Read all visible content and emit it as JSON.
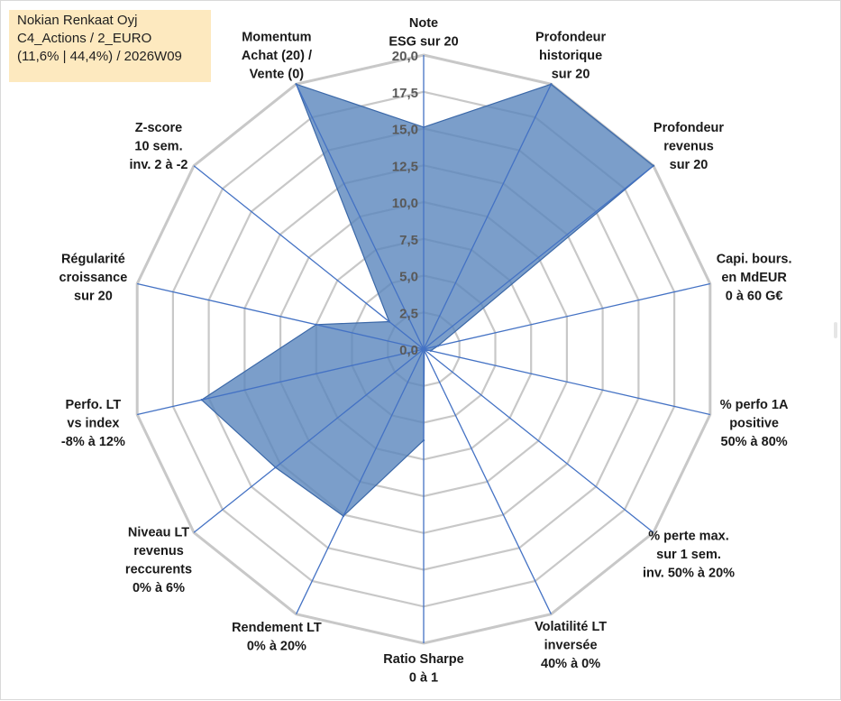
{
  "info_box": {
    "line1": "Nokian Renkaat Oyj",
    "line2": "C4_Actions / 2_EURO",
    "line3": "(11,6% | 44,4%) / 2026W09"
  },
  "colors": {
    "fill": "#5a86bd",
    "stroke": "#3b68a8",
    "grid": "#c8c8c8",
    "spoke": "#4472c4"
  },
  "chart_data": {
    "type": "radar",
    "title": "",
    "rmax": 20,
    "tick_step": 2.5,
    "tick_labels": [
      "0,0",
      "2,5",
      "5,0",
      "7,5",
      "10,0",
      "12,5",
      "15,0",
      "17,5",
      "20,0"
    ],
    "axes": [
      {
        "lines": [
          "Note",
          "ESG sur 20"
        ],
        "value": 15.1
      },
      {
        "lines": [
          "Profondeur",
          "historique",
          "sur 20"
        ],
        "value": 20
      },
      {
        "lines": [
          "Profondeur",
          "revenus",
          "sur 20"
        ],
        "value": 20
      },
      {
        "lines": [
          "Capi. bours.",
          "en MdEUR",
          "0 à 60 G€"
        ],
        "value": 1.0
      },
      {
        "lines": [
          "% perfo 1A",
          "positive",
          "50% à 80%"
        ],
        "value": 0.5
      },
      {
        "lines": [
          "% perte max.",
          "sur 1 sem.",
          "inv. 50% à 20%"
        ],
        "value": 0.1
      },
      {
        "lines": [
          "Volatilité LT",
          "inversée",
          "40% à 0%"
        ],
        "value": 0.1
      },
      {
        "lines": [
          "Ratio Sharpe",
          "0 à 1"
        ],
        "value": 6.2
      },
      {
        "lines": [
          "Rendement LT",
          "0% à 20%"
        ],
        "value": 12.6
      },
      {
        "lines": [
          "Niveau LT",
          "revenus",
          "reccurents",
          "0% à 6%"
        ],
        "value": 12.9
      },
      {
        "lines": [
          "Perfo. LT",
          "vs index",
          "-8% à 12%"
        ],
        "value": 15.5
      },
      {
        "lines": [
          "Régularité",
          "croissance",
          "sur 20"
        ],
        "value": 7.5
      },
      {
        "lines": [
          "Z-score",
          "10 sem.",
          "inv. 2 à -2"
        ],
        "value": 3.0
      },
      {
        "lines": [
          "Momentum",
          "Achat (20) /",
          "Vente (0)"
        ],
        "value": 20
      }
    ]
  }
}
